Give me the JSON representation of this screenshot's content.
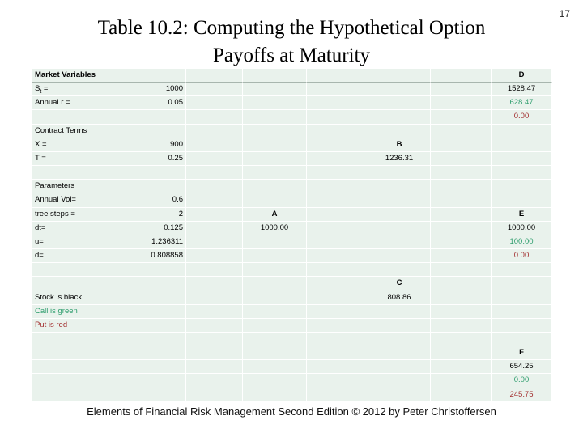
{
  "page": {
    "number": "17"
  },
  "title": {
    "line1": "Table 10.2:  Computing the Hypothetical Option",
    "line2": "Payoffs at Maturity"
  },
  "footer": {
    "credit": "Elements of Financial Risk Management Second Edition © 2012  by Peter Christoffersen"
  },
  "colors": {
    "cell_bg": "#e9f2ec",
    "grid_line": "#ffffff",
    "stock_black": "#000000",
    "call_green": "#2f9e6e",
    "put_red": "#a33131"
  },
  "table": {
    "rows": [
      {
        "cells": [
          {
            "c": 0,
            "t": "Market Variables",
            "bold": true
          },
          {
            "c": 7,
            "t": "D",
            "bold": true,
            "align": "center"
          }
        ]
      },
      {
        "cells": [
          {
            "c": 0,
            "t": "S",
            "sub": "t",
            "suffix": " ="
          },
          {
            "c": 1,
            "t": "1000",
            "align": "right"
          },
          {
            "c": 7,
            "t": "1528.47",
            "align": "center"
          }
        ]
      },
      {
        "cells": [
          {
            "c": 0,
            "t": "Annual r ="
          },
          {
            "c": 1,
            "t": "0.05",
            "align": "right"
          },
          {
            "c": 7,
            "t": "628.47",
            "align": "center",
            "color": "green"
          }
        ]
      },
      {
        "cells": [
          {
            "c": 7,
            "t": "0.00",
            "align": "center",
            "color": "red"
          }
        ]
      },
      {
        "cells": [
          {
            "c": 0,
            "t": "Contract Terms"
          }
        ]
      },
      {
        "cells": [
          {
            "c": 0,
            "t": "X ="
          },
          {
            "c": 1,
            "t": "900",
            "align": "right"
          },
          {
            "c": 5,
            "t": "B",
            "bold": true,
            "align": "center"
          }
        ]
      },
      {
        "cells": [
          {
            "c": 0,
            "t": "T ="
          },
          {
            "c": 1,
            "t": "0.25",
            "align": "right"
          },
          {
            "c": 5,
            "t": "1236.31",
            "align": "center"
          }
        ]
      },
      {
        "cells": []
      },
      {
        "cells": [
          {
            "c": 0,
            "t": "Parameters"
          }
        ]
      },
      {
        "cells": [
          {
            "c": 0,
            "t": "Annual Vol="
          },
          {
            "c": 1,
            "t": "0.6",
            "align": "right"
          }
        ]
      },
      {
        "cells": [
          {
            "c": 0,
            "t": "tree steps ="
          },
          {
            "c": 1,
            "t": "2",
            "align": "right"
          },
          {
            "c": 3,
            "t": "A",
            "bold": true,
            "align": "center"
          },
          {
            "c": 7,
            "t": "E",
            "bold": true,
            "align": "center"
          }
        ]
      },
      {
        "cells": [
          {
            "c": 0,
            "t": "dt="
          },
          {
            "c": 1,
            "t": "0.125",
            "align": "right"
          },
          {
            "c": 3,
            "t": "1000.00",
            "align": "center"
          },
          {
            "c": 7,
            "t": "1000.00",
            "align": "center"
          }
        ]
      },
      {
        "cells": [
          {
            "c": 0,
            "t": "u="
          },
          {
            "c": 1,
            "t": "1.236311",
            "align": "right"
          },
          {
            "c": 7,
            "t": "100.00",
            "align": "center",
            "color": "green"
          }
        ]
      },
      {
        "cells": [
          {
            "c": 0,
            "t": "d="
          },
          {
            "c": 1,
            "t": "0.808858",
            "align": "right"
          },
          {
            "c": 7,
            "t": "0.00",
            "align": "center",
            "color": "red"
          }
        ]
      },
      {
        "cells": []
      },
      {
        "cells": [
          {
            "c": 5,
            "t": "C",
            "bold": true,
            "align": "center"
          }
        ]
      },
      {
        "cells": [
          {
            "c": 0,
            "t": "Stock is black"
          },
          {
            "c": 5,
            "t": "808.86",
            "align": "center"
          }
        ]
      },
      {
        "cells": [
          {
            "c": 0,
            "t": "Call is green",
            "color": "green"
          }
        ]
      },
      {
        "cells": [
          {
            "c": 0,
            "t": "Put is red",
            "color": "red"
          }
        ]
      },
      {
        "cells": []
      },
      {
        "cells": [
          {
            "c": 7,
            "t": "F",
            "bold": true,
            "align": "center"
          }
        ]
      },
      {
        "cells": [
          {
            "c": 7,
            "t": "654.25",
            "align": "center"
          }
        ]
      },
      {
        "cells": [
          {
            "c": 7,
            "t": "0.00",
            "align": "center",
            "color": "green"
          }
        ]
      },
      {
        "cells": [
          {
            "c": 7,
            "t": "245.75",
            "align": "center",
            "color": "red"
          }
        ]
      }
    ]
  }
}
